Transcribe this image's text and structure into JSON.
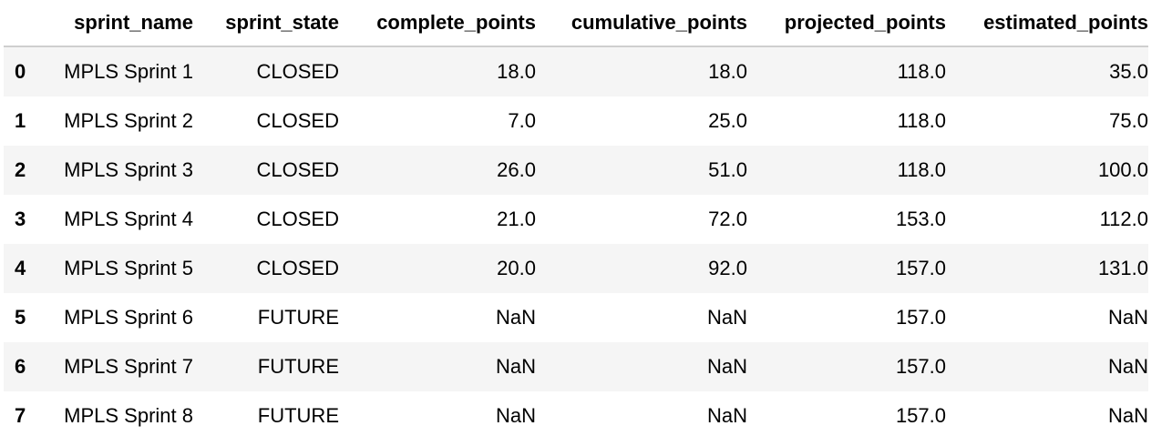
{
  "table": {
    "columns": [
      "",
      "sprint_name",
      "sprint_state",
      "complete_points",
      "cumulative_points",
      "projected_points",
      "estimated_points"
    ],
    "rows": [
      {
        "index": "0",
        "sprint_name": "MPLS Sprint 1",
        "sprint_state": "CLOSED",
        "complete_points": "18.0",
        "cumulative_points": "18.0",
        "projected_points": "118.0",
        "estimated_points": "35.0"
      },
      {
        "index": "1",
        "sprint_name": "MPLS Sprint 2",
        "sprint_state": "CLOSED",
        "complete_points": "7.0",
        "cumulative_points": "25.0",
        "projected_points": "118.0",
        "estimated_points": "75.0"
      },
      {
        "index": "2",
        "sprint_name": "MPLS Sprint 3",
        "sprint_state": "CLOSED",
        "complete_points": "26.0",
        "cumulative_points": "51.0",
        "projected_points": "118.0",
        "estimated_points": "100.0"
      },
      {
        "index": "3",
        "sprint_name": "MPLS Sprint 4",
        "sprint_state": "CLOSED",
        "complete_points": "21.0",
        "cumulative_points": "72.0",
        "projected_points": "153.0",
        "estimated_points": "112.0"
      },
      {
        "index": "4",
        "sprint_name": "MPLS Sprint 5",
        "sprint_state": "CLOSED",
        "complete_points": "20.0",
        "cumulative_points": "92.0",
        "projected_points": "157.0",
        "estimated_points": "131.0"
      },
      {
        "index": "5",
        "sprint_name": "MPLS Sprint 6",
        "sprint_state": "FUTURE",
        "complete_points": "NaN",
        "cumulative_points": "NaN",
        "projected_points": "157.0",
        "estimated_points": "NaN"
      },
      {
        "index": "6",
        "sprint_name": "MPLS Sprint 7",
        "sprint_state": "FUTURE",
        "complete_points": "NaN",
        "cumulative_points": "NaN",
        "projected_points": "157.0",
        "estimated_points": "NaN"
      },
      {
        "index": "7",
        "sprint_name": "MPLS Sprint 8",
        "sprint_state": "FUTURE",
        "complete_points": "NaN",
        "cumulative_points": "NaN",
        "projected_points": "157.0",
        "estimated_points": "NaN"
      }
    ]
  },
  "colors": {
    "striped_row": "#f5f5f5",
    "header_border": "#cfcfcf",
    "text": "#000000"
  }
}
